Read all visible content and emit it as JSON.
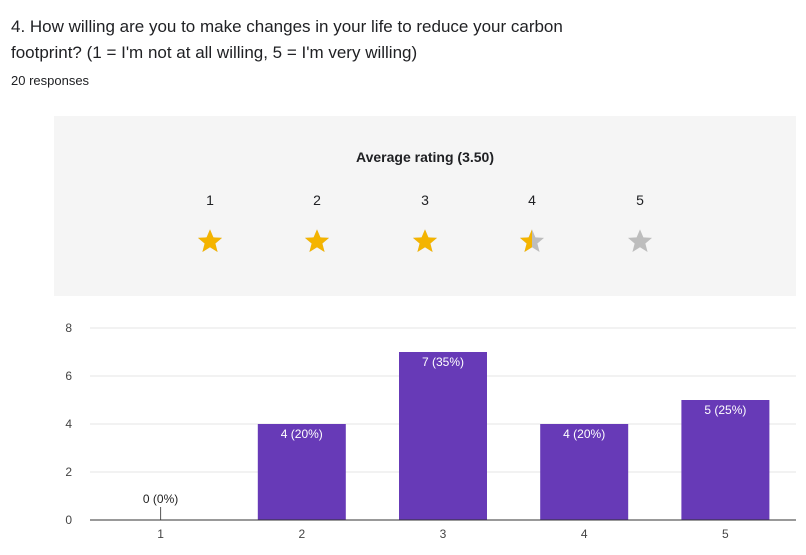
{
  "question": {
    "line1": "4. How willing are you to make changes in your life to reduce your carbon",
    "line2": "footprint? (1 = I'm not at all willing, 5 = I'm very willing)"
  },
  "responses": "20 responses",
  "rating": {
    "title": "Average rating (3.50)",
    "average": 3.5,
    "scale": [
      "1",
      "2",
      "3",
      "4",
      "5"
    ],
    "filled_color": "#f4b400",
    "empty_color": "#bdbdbd"
  },
  "chart_data": {
    "type": "bar",
    "categories": [
      "1",
      "2",
      "3",
      "4",
      "5"
    ],
    "values": [
      0,
      4,
      7,
      4,
      5
    ],
    "labels": [
      "0 (0%)",
      "4 (20%)",
      "7 (35%)",
      "4 (20%)",
      "5 (25%)"
    ],
    "ylim": [
      0,
      8
    ],
    "yticks": [
      0,
      2,
      4,
      6,
      8
    ],
    "bar_color": "#673ab7",
    "grid": true
  }
}
